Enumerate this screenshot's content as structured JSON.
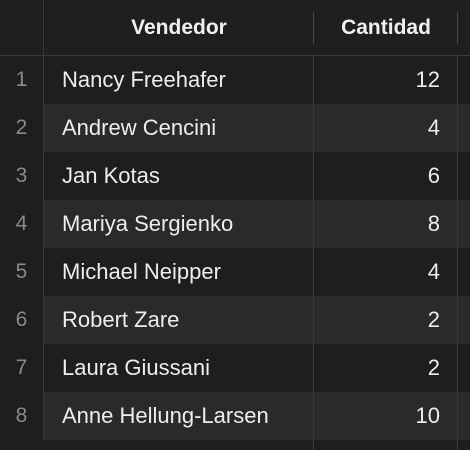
{
  "table": {
    "columns": {
      "vendedor": "Vendedor",
      "cantidad": "Cantidad"
    },
    "rows": [
      {
        "num": "1",
        "vendedor": "Nancy Freehafer",
        "cantidad": "12"
      },
      {
        "num": "2",
        "vendedor": "Andrew Cencini",
        "cantidad": "4"
      },
      {
        "num": "3",
        "vendedor": "Jan Kotas",
        "cantidad": "6"
      },
      {
        "num": "4",
        "vendedor": "Mariya Sergienko",
        "cantidad": "8"
      },
      {
        "num": "5",
        "vendedor": "Michael Neipper",
        "cantidad": "4"
      },
      {
        "num": "6",
        "vendedor": "Robert Zare",
        "cantidad": "2"
      },
      {
        "num": "7",
        "vendedor": "Laura Giussani",
        "cantidad": "2"
      },
      {
        "num": "8",
        "vendedor": "Anne Hellung-Larsen",
        "cantidad": "10"
      }
    ]
  },
  "colors": {
    "background": "#1e1e1e",
    "alt_row": "#2a2a2a",
    "grid_line": "#3a3a3a",
    "text": "#ededed",
    "row_number": "#8a8a8a"
  }
}
